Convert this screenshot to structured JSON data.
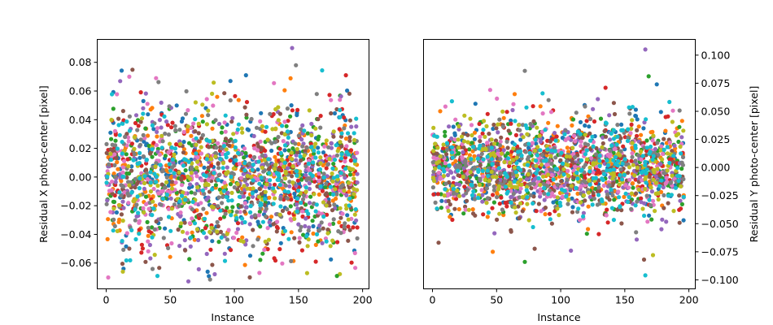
{
  "chart_data": [
    {
      "type": "scatter",
      "title": "",
      "xlabel": "Instance",
      "ylabel": "Residual X photo-center [pixel]",
      "xlim": [
        -7,
        205
      ],
      "ylim": [
        -0.078,
        0.096
      ],
      "xticks": [
        0,
        50,
        100,
        150,
        200
      ],
      "yticks": [
        -0.06,
        -0.04,
        -0.02,
        0.0,
        0.02,
        0.04,
        0.06,
        0.08
      ],
      "ytick_labels": [
        "−0.06",
        "−0.04",
        "−0.02",
        "0.00",
        "0.02",
        "0.04",
        "0.06",
        "0.08"
      ],
      "y_axis_side": "left",
      "grid": false,
      "series_count": 10,
      "points_per_series": 200,
      "x_range": [
        0,
        196
      ],
      "value_spread_std": 0.025,
      "notable_points": [
        {
          "x": 145,
          "y": 0.09
        },
        {
          "x": 148,
          "y": 0.078
        },
        {
          "x": 109,
          "y": 0.071
        },
        {
          "x": 187,
          "y": 0.071
        },
        {
          "x": 18,
          "y": 0.07
        },
        {
          "x": 40,
          "y": -0.069
        },
        {
          "x": 180,
          "y": -0.069
        },
        {
          "x": 112,
          "y": -0.07
        },
        {
          "x": 13,
          "y": -0.066
        }
      ]
    },
    {
      "type": "scatter",
      "title": "",
      "xlabel": "Instance",
      "ylabel": "Residual Y photo-center [pixel]",
      "xlim": [
        -7,
        205
      ],
      "ylim": [
        -0.108,
        0.114
      ],
      "xticks": [
        0,
        50,
        100,
        150,
        200
      ],
      "yticks": [
        -0.1,
        -0.075,
        -0.05,
        -0.025,
        0.0,
        0.025,
        0.05,
        0.075,
        0.1
      ],
      "ytick_labels": [
        "−0.100",
        "−0.075",
        "−0.050",
        "−0.025",
        "0.000",
        "0.025",
        "0.050",
        "0.075",
        "0.100"
      ],
      "y_axis_side": "right",
      "grid": false,
      "series_count": 10,
      "points_per_series": 200,
      "x_range": [
        0,
        196
      ],
      "value_spread_std": 0.022,
      "notable_points": [
        {
          "x": 166,
          "y": 0.105
        },
        {
          "x": 72,
          "y": 0.086
        },
        {
          "x": 175,
          "y": 0.074
        },
        {
          "x": 135,
          "y": 0.071
        },
        {
          "x": 45,
          "y": 0.069
        },
        {
          "x": 166,
          "y": -0.096
        },
        {
          "x": 72,
          "y": -0.084
        },
        {
          "x": 165,
          "y": -0.082
        },
        {
          "x": 172,
          "y": -0.078
        },
        {
          "x": 47,
          "y": -0.075
        },
        {
          "x": 108,
          "y": -0.074
        }
      ]
    }
  ],
  "colors": [
    "#1f77b4",
    "#ff7f0e",
    "#2ca02c",
    "#d62728",
    "#9467bd",
    "#8c564b",
    "#e377c2",
    "#7f7f7f",
    "#bcbd22",
    "#17becf"
  ]
}
